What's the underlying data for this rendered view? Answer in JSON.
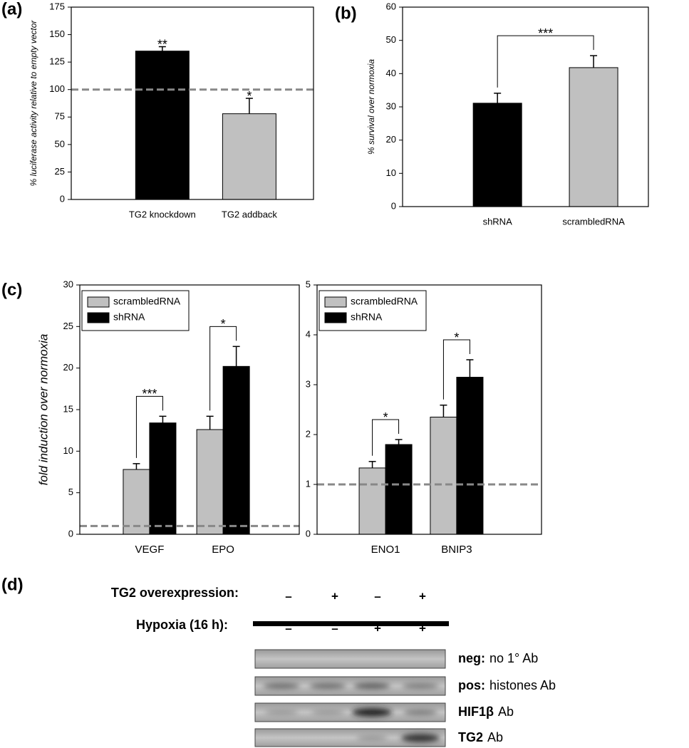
{
  "panel_labels": [
    "(a)",
    "(b)",
    "(c)",
    "(d)"
  ],
  "chart_data": [
    {
      "type": "bar",
      "ylabel": "% luciferase activity relative to empty vector",
      "categories": [
        "TG2 knockdown",
        "TG2 addback"
      ],
      "values": [
        135,
        78
      ],
      "errors": [
        4,
        14
      ],
      "colors": [
        "#000000",
        "#c0c0c0"
      ],
      "reference_line": 100,
      "annotations": [
        "**",
        "*"
      ],
      "ylim": [
        0,
        175
      ],
      "yticks": [
        0,
        25,
        50,
        75,
        100,
        125,
        150,
        175
      ]
    },
    {
      "type": "bar",
      "ylabel": "% survival over normoxia",
      "categories": [
        "shRNA",
        "scrambledRNA"
      ],
      "values": [
        31.1,
        41.8
      ],
      "errors": [
        3,
        3.6
      ],
      "colors": [
        "#000000",
        "#c0c0c0"
      ],
      "annotations": [
        "***"
      ],
      "ylim": [
        0,
        60
      ],
      "yticks": [
        0,
        10,
        20,
        30,
        40,
        50,
        60
      ]
    },
    {
      "type": "bar",
      "ylabel": "fold induction over normoxia",
      "categories": [
        "VEGF",
        "EPO"
      ],
      "series": [
        {
          "name": "scrambledRNA",
          "color": "#c0c0c0",
          "values": [
            7.8,
            12.6
          ],
          "errors": [
            0.7,
            1.6
          ]
        },
        {
          "name": "shRNA",
          "color": "#000000",
          "values": [
            13.4,
            20.2
          ],
          "errors": [
            0.8,
            2.4
          ]
        }
      ],
      "reference_line": 1,
      "annotations": [
        "***",
        "*"
      ],
      "legend": "upper left",
      "ylim": [
        0,
        30
      ],
      "yticks": [
        0,
        5,
        10,
        15,
        20,
        25,
        30
      ]
    },
    {
      "type": "bar",
      "categories": [
        "ENO1",
        "BNIP3"
      ],
      "series": [
        {
          "name": "scrambledRNA",
          "color": "#c0c0c0",
          "values": [
            1.33,
            2.35
          ],
          "errors": [
            0.13,
            0.24
          ]
        },
        {
          "name": "shRNA",
          "color": "#000000",
          "values": [
            1.8,
            3.15
          ],
          "errors": [
            0.1,
            0.35
          ]
        }
      ],
      "reference_line": 1,
      "annotations": [
        "*",
        "*"
      ],
      "legend": "upper left",
      "ylim": [
        0,
        5
      ],
      "yticks": [
        0,
        1,
        2,
        3,
        4,
        5
      ]
    }
  ],
  "gel": {
    "conditions": [
      {
        "label": "TG2 overexpression:",
        "signs": [
          "–",
          "+",
          "–",
          "+"
        ]
      },
      {
        "label": "Hypoxia (16 h):",
        "signs": [
          "–",
          "–",
          "+",
          "+"
        ]
      }
    ],
    "rows": [
      {
        "bold": "neg:",
        "text": "no 1° Ab"
      },
      {
        "bold": "pos:",
        "text": "histones Ab"
      },
      {
        "bold": "HIF1β",
        "text": "Ab"
      },
      {
        "bold": "TG2",
        "text": "Ab"
      }
    ]
  }
}
